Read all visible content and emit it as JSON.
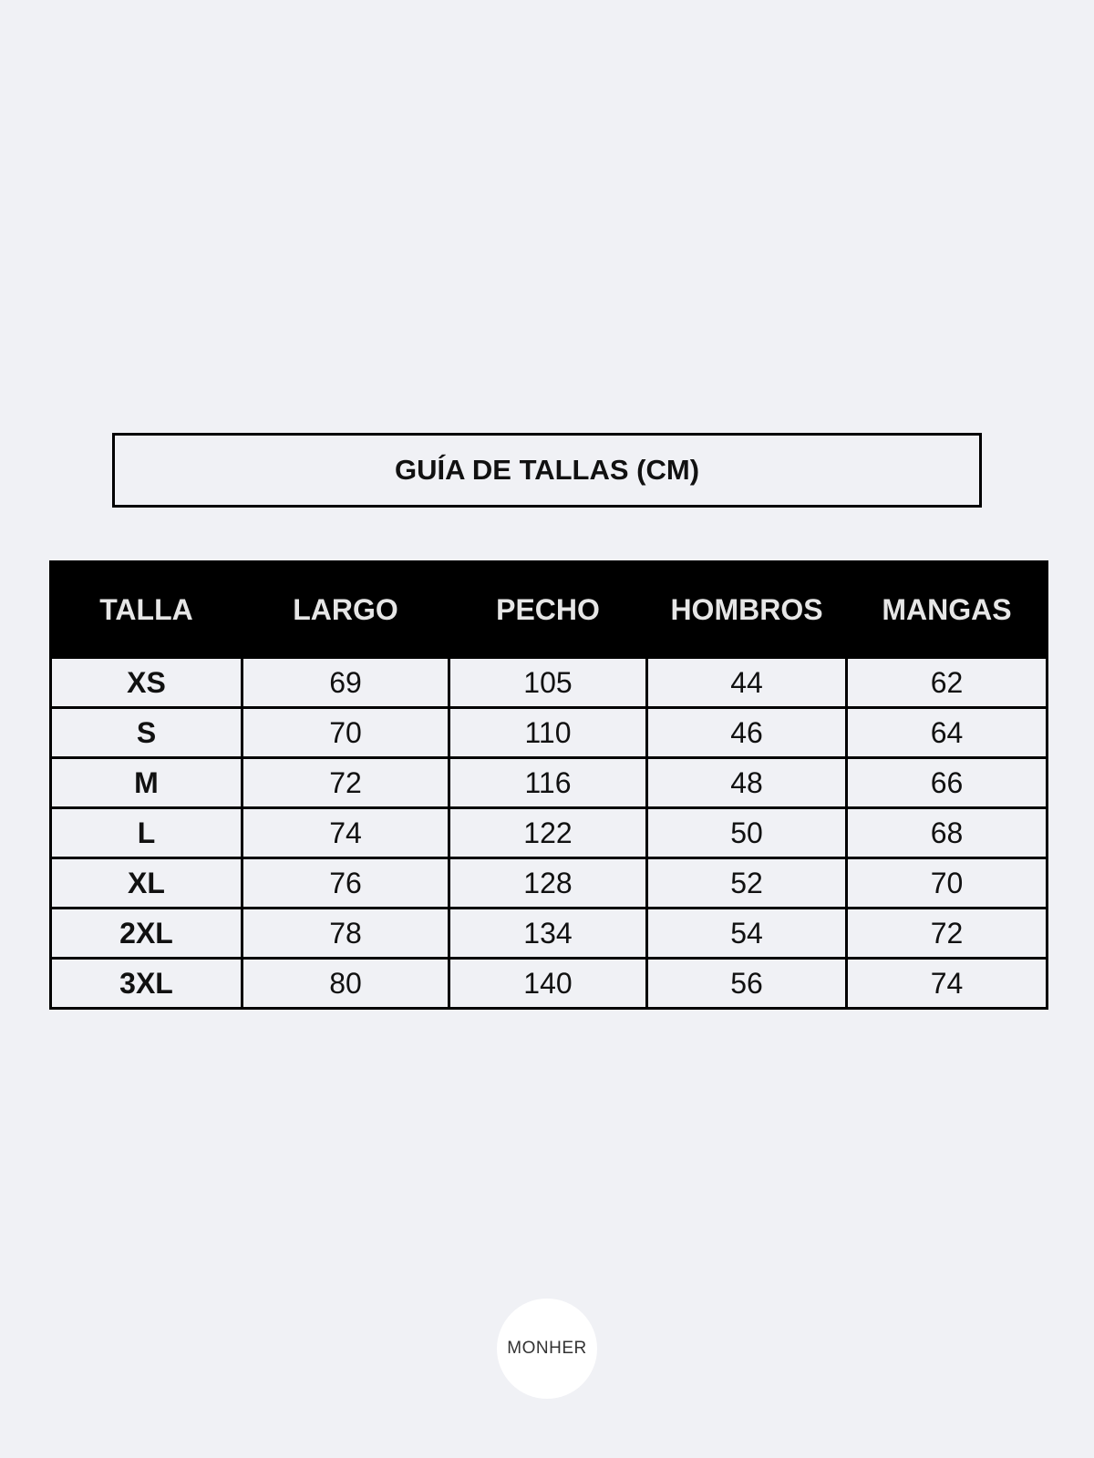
{
  "title": "GUÍA DE TALLAS (CM)",
  "table": {
    "headers": [
      "TALLA",
      "LARGO",
      "PECHO",
      "HOMBROS",
      "MANGAS"
    ],
    "rows": [
      [
        "XS",
        "69",
        "105",
        "44",
        "62"
      ],
      [
        "S",
        "70",
        "110",
        "46",
        "64"
      ],
      [
        "M",
        "72",
        "116",
        "48",
        "66"
      ],
      [
        "L",
        "74",
        "122",
        "50",
        "68"
      ],
      [
        "XL",
        "76",
        "128",
        "52",
        "70"
      ],
      [
        "2XL",
        "78",
        "134",
        "54",
        "72"
      ],
      [
        "3XL",
        "80",
        "140",
        "56",
        "74"
      ]
    ]
  },
  "logo": {
    "text": "MONHER"
  },
  "colors": {
    "background": "#f0f1f5",
    "header_bg": "#000000",
    "header_text": "#e6e6e6"
  }
}
